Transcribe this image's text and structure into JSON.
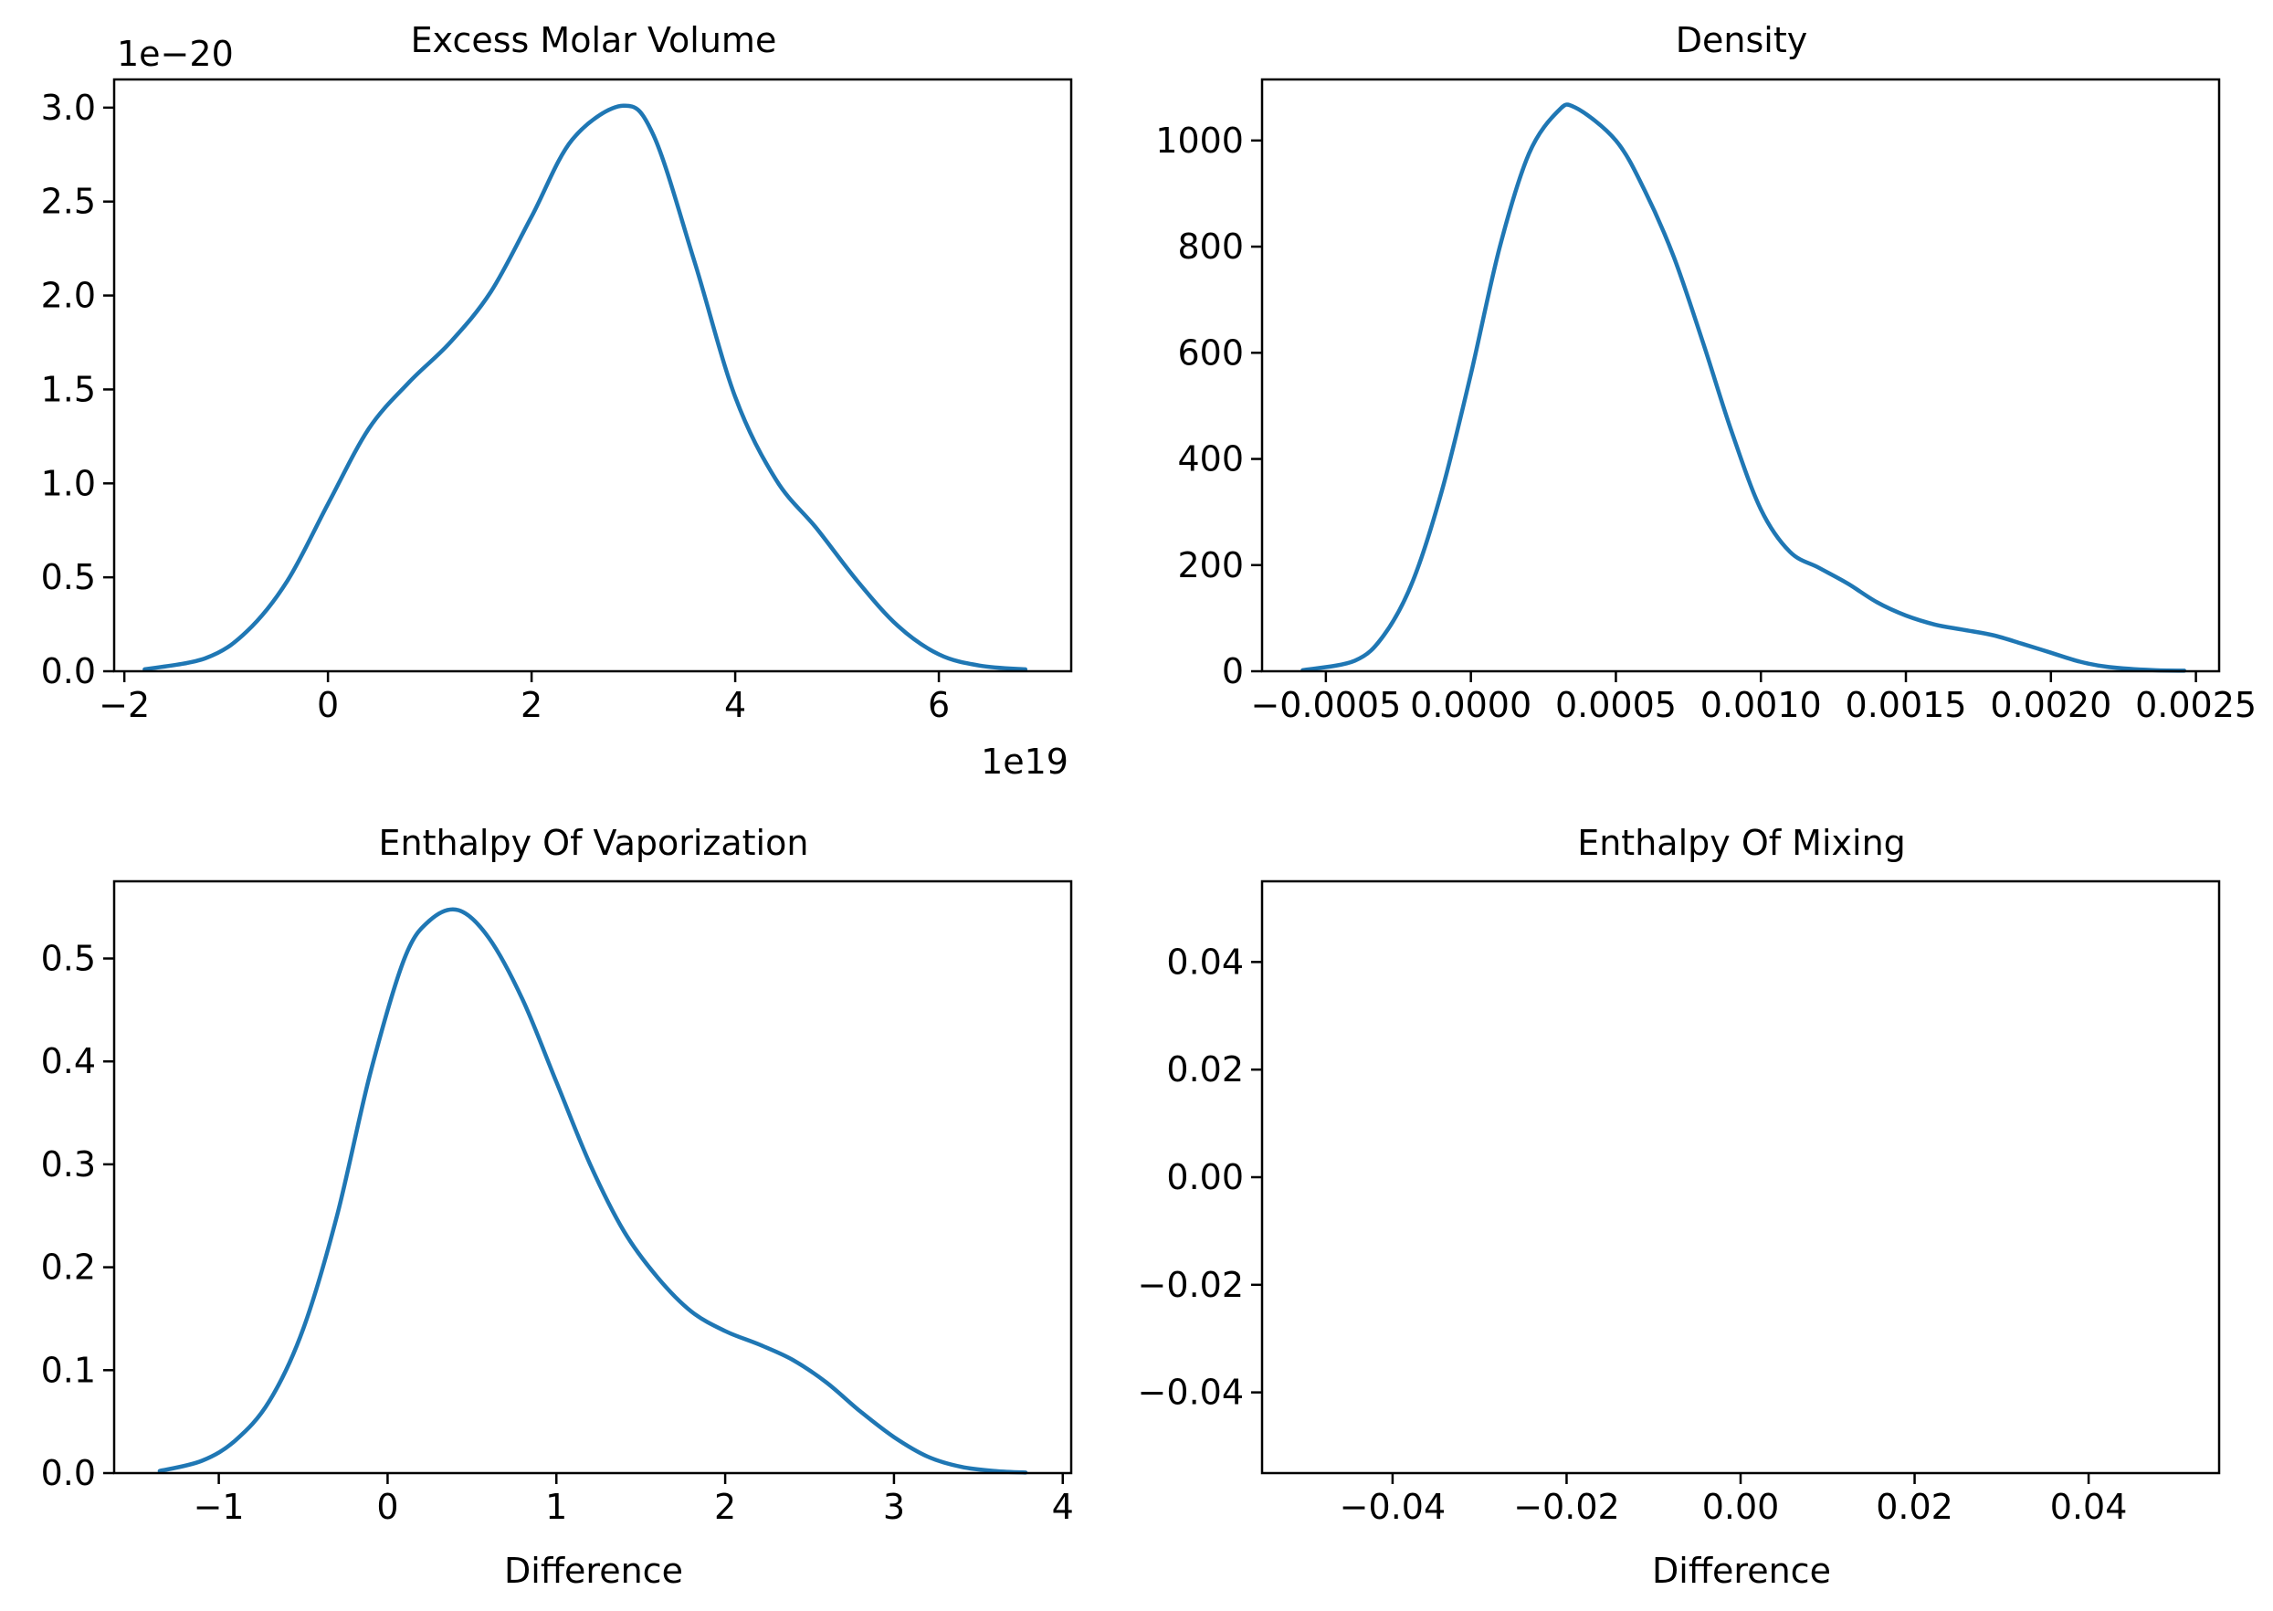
{
  "chart_data": [
    {
      "type": "line",
      "title": "Excess Molar Volume",
      "xlabel": "",
      "ylabel": "",
      "x_offset_text": "1e19",
      "y_offset_text": "1e−20",
      "xlim": [
        -2.1,
        7.3
      ],
      "ylim": [
        0,
        3.15
      ],
      "xticks": [
        {
          "value": -2,
          "label": "−2"
        },
        {
          "value": 0,
          "label": "0"
        },
        {
          "value": 2,
          "label": "2"
        },
        {
          "value": 4,
          "label": "4"
        },
        {
          "value": 6,
          "label": "6"
        }
      ],
      "yticks": [
        {
          "value": 0.0,
          "label": "0.0"
        },
        {
          "value": 0.5,
          "label": "0.5"
        },
        {
          "value": 1.0,
          "label": "1.0"
        },
        {
          "value": 1.5,
          "label": "1.5"
        },
        {
          "value": 2.0,
          "label": "2.0"
        },
        {
          "value": 2.5,
          "label": "2.5"
        },
        {
          "value": 3.0,
          "label": "3.0"
        }
      ],
      "color": "#1f77b4",
      "grid": false,
      "series": [
        {
          "x": [
            -1.8,
            -1.2,
            -0.8,
            -0.4,
            0.0,
            0.4,
            0.8,
            1.2,
            1.6,
            2.0,
            2.4,
            2.9,
            3.2,
            3.6,
            4.0,
            4.4,
            4.8,
            5.2,
            5.6,
            6.0,
            6.4,
            6.85
          ],
          "y": [
            0.01,
            0.07,
            0.21,
            0.48,
            0.89,
            1.29,
            1.54,
            1.75,
            2.02,
            2.42,
            2.83,
            3.01,
            2.85,
            2.18,
            1.46,
            1.02,
            0.76,
            0.48,
            0.24,
            0.09,
            0.03,
            0.01
          ]
        }
      ]
    },
    {
      "type": "line",
      "title": "Density",
      "xlabel": "",
      "ylabel": "",
      "xlim": [
        -0.00072,
        0.00258
      ],
      "ylim": [
        0,
        1115
      ],
      "xticks": [
        {
          "value": -0.0005,
          "label": "−0.0005"
        },
        {
          "value": 0.0,
          "label": "0.0000"
        },
        {
          "value": 0.0005,
          "label": "0.0005"
        },
        {
          "value": 0.001,
          "label": "0.0010"
        },
        {
          "value": 0.0015,
          "label": "0.0015"
        },
        {
          "value": 0.002,
          "label": "0.0020"
        },
        {
          "value": 0.0025,
          "label": "0.0025"
        }
      ],
      "yticks": [
        {
          "value": 0,
          "label": "0"
        },
        {
          "value": 200,
          "label": "200"
        },
        {
          "value": 400,
          "label": "400"
        },
        {
          "value": 600,
          "label": "600"
        },
        {
          "value": 800,
          "label": "800"
        },
        {
          "value": 1000,
          "label": "1000"
        }
      ],
      "color": "#1f77b4",
      "grid": false,
      "series": [
        {
          "x": [
            -0.00058,
            -0.0004,
            -0.0003,
            -0.0002,
            -0.0001,
            0.0,
            0.0001,
            0.0002,
            0.0003,
            0.00036,
            0.0005,
            0.0006,
            0.0007,
            0.0008,
            0.0009,
            0.001,
            0.0011,
            0.0012,
            0.0013,
            0.0014,
            0.0015,
            0.0016,
            0.0017,
            0.0018,
            0.0019,
            0.002,
            0.0021,
            0.0022,
            0.00235,
            0.00246
          ],
          "y": [
            2,
            20,
            68,
            170,
            340,
            560,
            800,
            975,
            1055,
            1062,
            1000,
            905,
            780,
            620,
            450,
            305,
            225,
            195,
            165,
            130,
            105,
            88,
            78,
            68,
            52,
            35,
            18,
            8,
            2,
            1
          ]
        }
      ]
    },
    {
      "type": "line",
      "title": "Enthalpy Of Vaporization",
      "xlabel": "Difference",
      "ylabel": "",
      "xlim": [
        -1.62,
        4.05
      ],
      "ylim": [
        0,
        0.575
      ],
      "xticks": [
        {
          "value": -1,
          "label": "−1"
        },
        {
          "value": 0,
          "label": "0"
        },
        {
          "value": 1,
          "label": "1"
        },
        {
          "value": 2,
          "label": "2"
        },
        {
          "value": 3,
          "label": "3"
        },
        {
          "value": 4,
          "label": "4"
        }
      ],
      "yticks": [
        {
          "value": 0.0,
          "label": "0.0"
        },
        {
          "value": 0.1,
          "label": "0.1"
        },
        {
          "value": 0.2,
          "label": "0.2"
        },
        {
          "value": 0.3,
          "label": "0.3"
        },
        {
          "value": 0.4,
          "label": "0.4"
        },
        {
          "value": 0.5,
          "label": "0.5"
        }
      ],
      "color": "#1f77b4",
      "grid": false,
      "series": [
        {
          "x": [
            -1.35,
            -1.1,
            -0.9,
            -0.7,
            -0.5,
            -0.3,
            -0.1,
            0.1,
            0.25,
            0.42,
            0.6,
            0.8,
            1.0,
            1.2,
            1.4,
            1.6,
            1.8,
            2.0,
            2.2,
            2.4,
            2.6,
            2.8,
            3.0,
            3.2,
            3.4,
            3.6,
            3.78
          ],
          "y": [
            0.002,
            0.012,
            0.032,
            0.07,
            0.14,
            0.25,
            0.39,
            0.5,
            0.537,
            0.547,
            0.52,
            0.46,
            0.38,
            0.3,
            0.235,
            0.19,
            0.157,
            0.138,
            0.125,
            0.11,
            0.088,
            0.06,
            0.035,
            0.016,
            0.006,
            0.002,
            0.0005
          ]
        }
      ]
    },
    {
      "type": "line",
      "title": "Enthalpy Of Mixing",
      "xlabel": "Difference",
      "ylabel": "",
      "xlim": [
        -0.055,
        0.055
      ],
      "ylim": [
        -0.055,
        0.055
      ],
      "xticks": [
        {
          "value": -0.04,
          "label": "−0.04"
        },
        {
          "value": -0.02,
          "label": "−0.02"
        },
        {
          "value": 0.0,
          "label": "0.00"
        },
        {
          "value": 0.02,
          "label": "0.02"
        },
        {
          "value": 0.04,
          "label": "0.04"
        }
      ],
      "yticks": [
        {
          "value": -0.04,
          "label": "−0.04"
        },
        {
          "value": -0.02,
          "label": "−0.02"
        },
        {
          "value": 0.0,
          "label": "0.00"
        },
        {
          "value": 0.02,
          "label": "0.02"
        },
        {
          "value": 0.04,
          "label": "0.04"
        }
      ],
      "color": "#1f77b4",
      "grid": false,
      "series": []
    }
  ]
}
